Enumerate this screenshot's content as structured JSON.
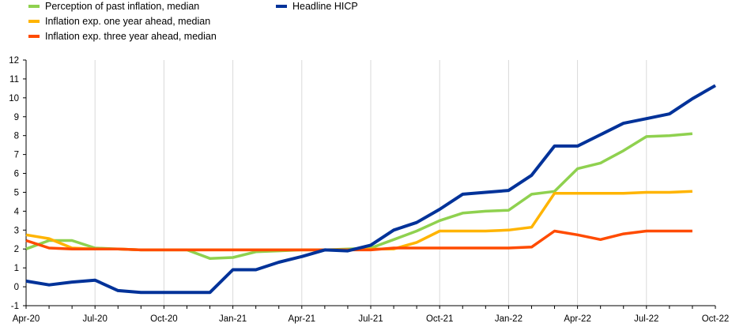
{
  "chart_data": {
    "type": "line",
    "title": "",
    "xlabel": "",
    "ylabel": "",
    "ylim": [
      -1,
      12
    ],
    "yticks": [
      -1,
      0,
      1,
      2,
      3,
      4,
      5,
      6,
      7,
      8,
      9,
      10,
      11,
      12
    ],
    "grid": "vertical",
    "legend_position": "top-left",
    "x_start": "Apr-20",
    "x_end": "Oct-22",
    "xtick_labels": [
      "Apr-20",
      "Jul-20",
      "Oct-20",
      "Jan-21",
      "Apr-21",
      "Jul-21",
      "Oct-21",
      "Jan-22",
      "Apr-22",
      "Jul-22",
      "Oct-22"
    ],
    "months": [
      "Apr-20",
      "May-20",
      "Jun-20",
      "Jul-20",
      "Aug-20",
      "Sep-20",
      "Oct-20",
      "Nov-20",
      "Dec-20",
      "Jan-21",
      "Feb-21",
      "Mar-21",
      "Apr-21",
      "May-21",
      "Jun-21",
      "Jul-21",
      "Aug-21",
      "Sep-21",
      "Oct-21",
      "Nov-21",
      "Dec-21",
      "Jan-22",
      "Feb-22",
      "Mar-22",
      "Apr-22",
      "May-22",
      "Jun-22",
      "Jul-22",
      "Aug-22",
      "Sep-22",
      "Oct-22"
    ],
    "series": [
      {
        "name": "Perception of past inflation, median",
        "color": "#8fd14f",
        "values": [
          2.0,
          2.45,
          2.45,
          2.05,
          2.0,
          1.95,
          1.95,
          1.95,
          1.5,
          1.55,
          1.85,
          1.9,
          1.95,
          1.95,
          2.0,
          2.05,
          2.5,
          2.95,
          3.5,
          3.9,
          4.0,
          4.05,
          4.9,
          5.05,
          6.25,
          6.55,
          7.2,
          7.95,
          8.0,
          8.1,
          null
        ]
      },
      {
        "name": "Inflation exp. one year ahead, median",
        "color": "#ffb400",
        "values": [
          2.75,
          2.55,
          2.05,
          2.0,
          2.0,
          1.95,
          1.95,
          1.95,
          1.95,
          1.95,
          1.95,
          1.95,
          1.95,
          1.95,
          1.95,
          2.0,
          2.0,
          2.35,
          2.95,
          2.95,
          2.95,
          3.0,
          3.15,
          4.95,
          4.95,
          4.95,
          4.95,
          5.0,
          5.0,
          5.05,
          null
        ]
      },
      {
        "name": "Inflation exp. three year ahead, median",
        "color": "#ff4b00",
        "values": [
          2.45,
          2.05,
          2.0,
          2.0,
          2.0,
          1.95,
          1.95,
          1.95,
          1.95,
          1.95,
          1.95,
          1.95,
          1.95,
          1.95,
          1.95,
          1.95,
          2.05,
          2.05,
          2.05,
          2.05,
          2.05,
          2.05,
          2.1,
          2.95,
          2.75,
          2.5,
          2.8,
          2.95,
          2.95,
          2.95,
          null
        ]
      },
      {
        "name": "Headline HICP",
        "color": "#003299",
        "values": [
          0.3,
          0.1,
          0.25,
          0.35,
          -0.2,
          -0.3,
          -0.3,
          -0.3,
          -0.3,
          0.9,
          0.9,
          1.3,
          1.6,
          1.95,
          1.9,
          2.2,
          3.0,
          3.4,
          4.1,
          4.9,
          5.0,
          5.1,
          5.9,
          7.45,
          7.45,
          8.05,
          8.65,
          8.9,
          9.15,
          9.95,
          10.65
        ]
      }
    ]
  }
}
